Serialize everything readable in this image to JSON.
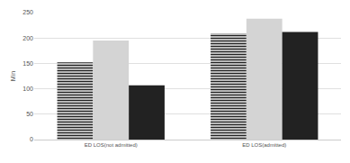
{
  "chart_data": {
    "type": "bar",
    "y_label": "Min",
    "categories": [
      "ED LOS(not admitted)",
      "ED LOS(admitted)"
    ],
    "series": [
      {
        "color": "#222222",
        "marker": "stripes",
        "values": [
          152,
          209
        ]
      },
      {
        "color": "#d4d4d4",
        "values": [
          195,
          238
        ]
      },
      {
        "color": "#222222",
        "values": [
          107,
          212
        ]
      }
    ],
    "ylim": [
      0,
      250
    ],
    "yticks": [
      0,
      50,
      100,
      150,
      200,
      250
    ],
    "grid": true
  }
}
